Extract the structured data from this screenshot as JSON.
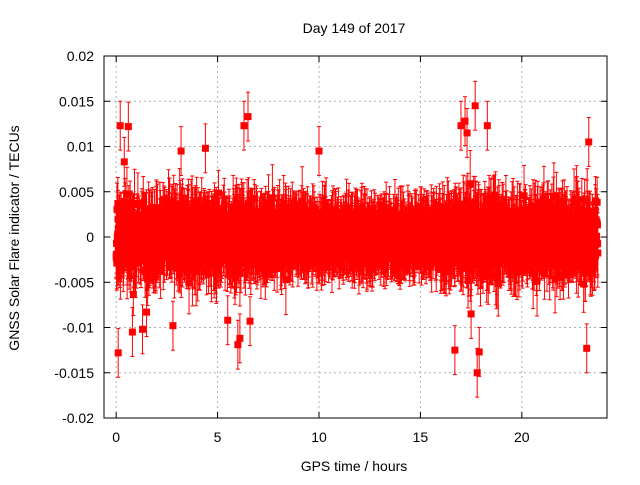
{
  "chart_data": {
    "type": "scatter",
    "title": "Day 149 of 2017",
    "xlabel": "GPS time / hours",
    "ylabel": "GNSS Solar Flare indicator / TECUs",
    "xlim": [
      -0.6,
      24.2
    ],
    "ylim": [
      -0.02,
      0.02
    ],
    "x_ticks": [
      0,
      5,
      10,
      15,
      20
    ],
    "x_tick_labels": [
      "0",
      "5",
      "10",
      "15",
      "20"
    ],
    "y_ticks": [
      -0.02,
      -0.015,
      -0.01,
      -0.005,
      0,
      0.005,
      0.01,
      0.015,
      0.02
    ],
    "y_tick_labels": [
      "-0.02",
      "-0.015",
      "-0.01",
      "-0.005",
      "0",
      "0.005",
      "0.01",
      "0.015",
      "0.02"
    ],
    "grid": true,
    "legend": "none",
    "colors": {
      "series": "#ff0000",
      "grid": "#b0b0b0",
      "axis": "#000000"
    },
    "series": [
      {
        "marker": "square",
        "error_bars": true,
        "x_range": [
          0,
          23.75
        ],
        "sampling_interval_hours": 0.0083,
        "typical_abs_value": 0.004,
        "typical_error": 0.003,
        "x": [
          0.1,
          0.2,
          0.4,
          0.6,
          0.8,
          1.3,
          1.5,
          2.8,
          3.2,
          4.4,
          5.5,
          6.0,
          6.1,
          6.3,
          6.5,
          6.6,
          10.0,
          16.7,
          17.0,
          17.2,
          17.3,
          17.5,
          17.7,
          17.8,
          17.9,
          18.3,
          23.2,
          23.3
        ],
        "values": [
          -0.0128,
          0.0123,
          0.0083,
          0.0122,
          -0.0105,
          -0.0102,
          -0.0083,
          -0.0098,
          0.0095,
          0.0098,
          -0.0092,
          -0.0119,
          -0.0112,
          0.0123,
          0.0133,
          -0.0093,
          0.0095,
          -0.0125,
          0.0123,
          0.0128,
          0.0115,
          -0.0085,
          0.0145,
          -0.015,
          -0.0127,
          0.0123,
          -0.0123,
          0.0105
        ]
      }
    ]
  }
}
